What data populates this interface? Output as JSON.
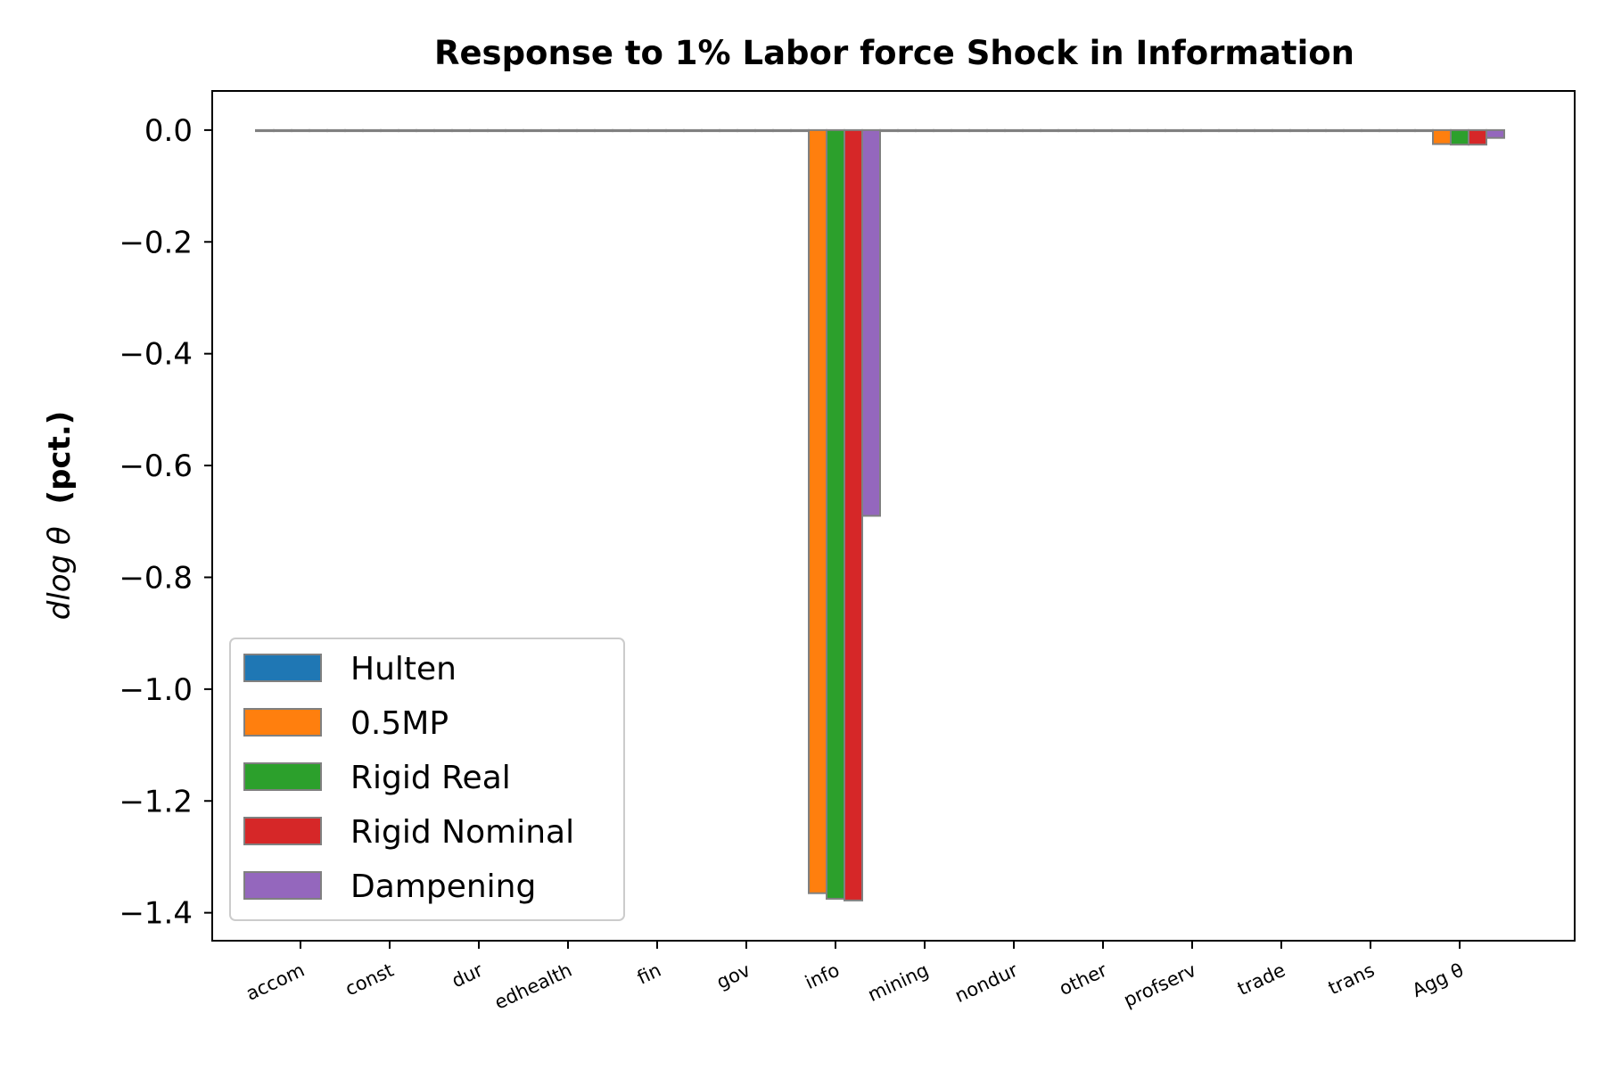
{
  "chart_data": {
    "type": "bar",
    "title": "Response to 1% Labor force Shock in Information",
    "ylabel": "d log θ  (pct.)",
    "ylabel_main": "dlog θ",
    "ylabel_unit": "(pct.)",
    "xlabel": "",
    "ylim": [
      -1.45,
      0.07
    ],
    "yticks": [
      0.0,
      -0.2,
      -0.4,
      -0.6,
      -0.8,
      -1.0,
      -1.2,
      -1.4
    ],
    "ytick_labels": [
      "0.0",
      "−0.2",
      "−0.4",
      "−0.6",
      "−0.8",
      "−1.0",
      "−1.2",
      "−1.4"
    ],
    "categories": [
      "accom",
      "const",
      "dur",
      "edhealth",
      "fin",
      "gov",
      "info",
      "mining",
      "nondur",
      "other",
      "profserv",
      "trade",
      "trans",
      "Agg θ"
    ],
    "series": [
      {
        "name": "Hulten",
        "color": "#1f77b4",
        "values": [
          0,
          0,
          0,
          0,
          0,
          0,
          0,
          0,
          0,
          0,
          0,
          0,
          0,
          0
        ]
      },
      {
        "name": "0.5MP",
        "color": "#ff7f0e",
        "values": [
          0,
          0,
          0,
          0,
          0,
          0,
          -1.365,
          0,
          0,
          0,
          0,
          0,
          0,
          -0.025
        ]
      },
      {
        "name": "Rigid Real",
        "color": "#2ca02c",
        "values": [
          0,
          0,
          0,
          0,
          0,
          0,
          -1.375,
          0,
          0,
          0,
          0,
          0,
          0,
          -0.026
        ]
      },
      {
        "name": "Rigid Nominal",
        "color": "#d62728",
        "values": [
          0,
          0,
          0,
          0,
          0,
          0,
          -1.378,
          0,
          0,
          0,
          0,
          0,
          0,
          -0.026
        ]
      },
      {
        "name": "Dampening",
        "color": "#9467bd",
        "values": [
          0,
          0,
          0,
          0,
          0,
          0,
          -0.69,
          0,
          0,
          0,
          0,
          0,
          0,
          -0.014
        ]
      }
    ],
    "legend_position": "lower-left",
    "grid": false,
    "bar_edge_color": "#808080"
  }
}
